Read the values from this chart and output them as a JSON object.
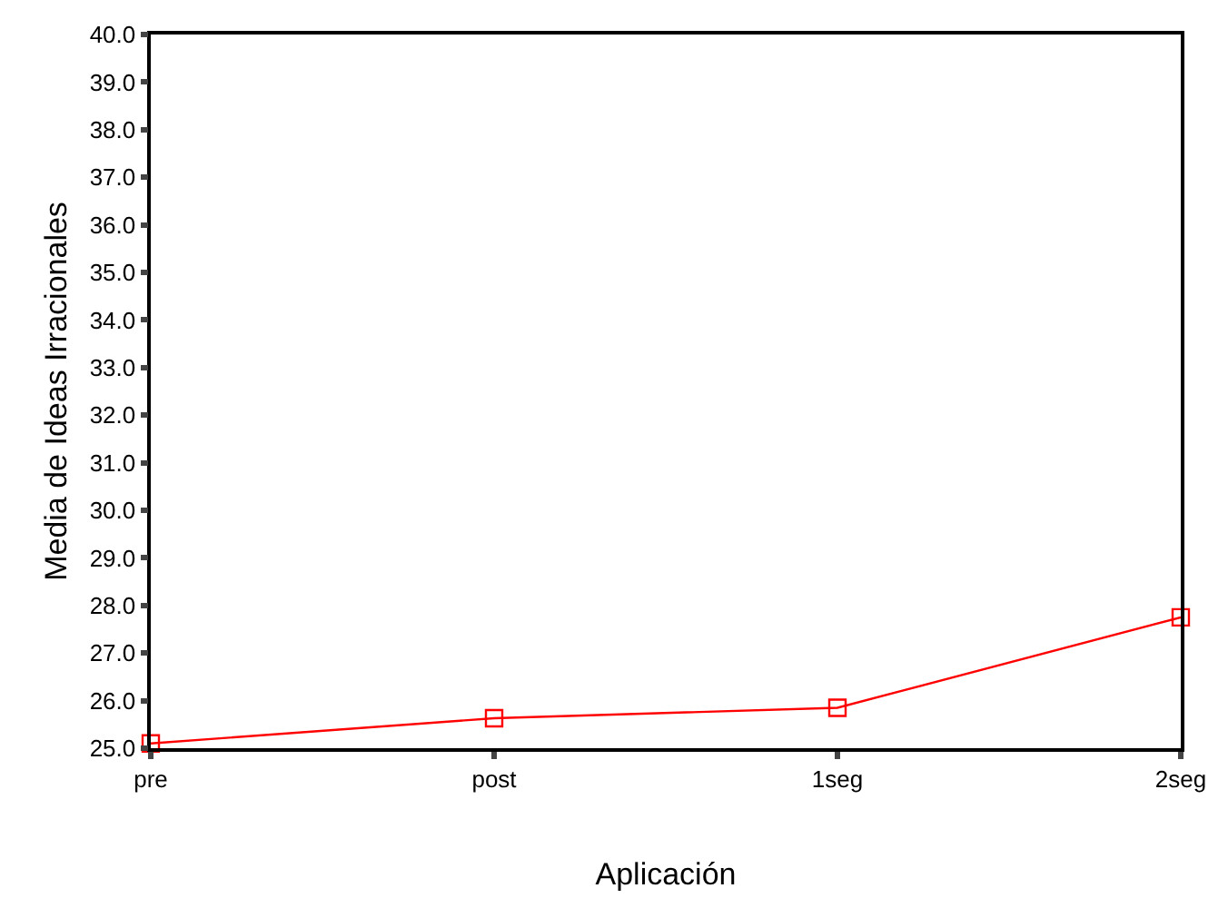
{
  "chart_data": {
    "type": "line",
    "xlabel": "Aplicación",
    "ylabel": "Media de Ideas Irracionales",
    "categories": [
      "pre",
      "post",
      "1seg",
      "2seg"
    ],
    "series": [
      {
        "color": "#ff0000",
        "values": [
          25.1,
          25.63,
          25.85,
          27.75
        ]
      }
    ],
    "ylim": [
      25,
      40
    ],
    "yticks": [
      {
        "value": 25,
        "label": "25.0"
      },
      {
        "value": 26,
        "label": "26.0"
      },
      {
        "value": 27,
        "label": "27.0"
      },
      {
        "value": 28,
        "label": "28.0"
      },
      {
        "value": 29,
        "label": "29.0"
      },
      {
        "value": 30,
        "label": "30.0"
      },
      {
        "value": 31,
        "label": "31.0"
      },
      {
        "value": 32,
        "label": "32.0"
      },
      {
        "value": 33,
        "label": "33.0"
      },
      {
        "value": 34,
        "label": "34.0"
      },
      {
        "value": 35,
        "label": "35.0"
      },
      {
        "value": 36,
        "label": "36.0"
      },
      {
        "value": 37,
        "label": "37.0"
      },
      {
        "value": 38,
        "label": "38.0"
      },
      {
        "value": 39,
        "label": "39.0"
      },
      {
        "value": 40,
        "label": "40.0"
      }
    ],
    "grid": false,
    "legend": false,
    "marker": "square",
    "line_style": "solid"
  }
}
